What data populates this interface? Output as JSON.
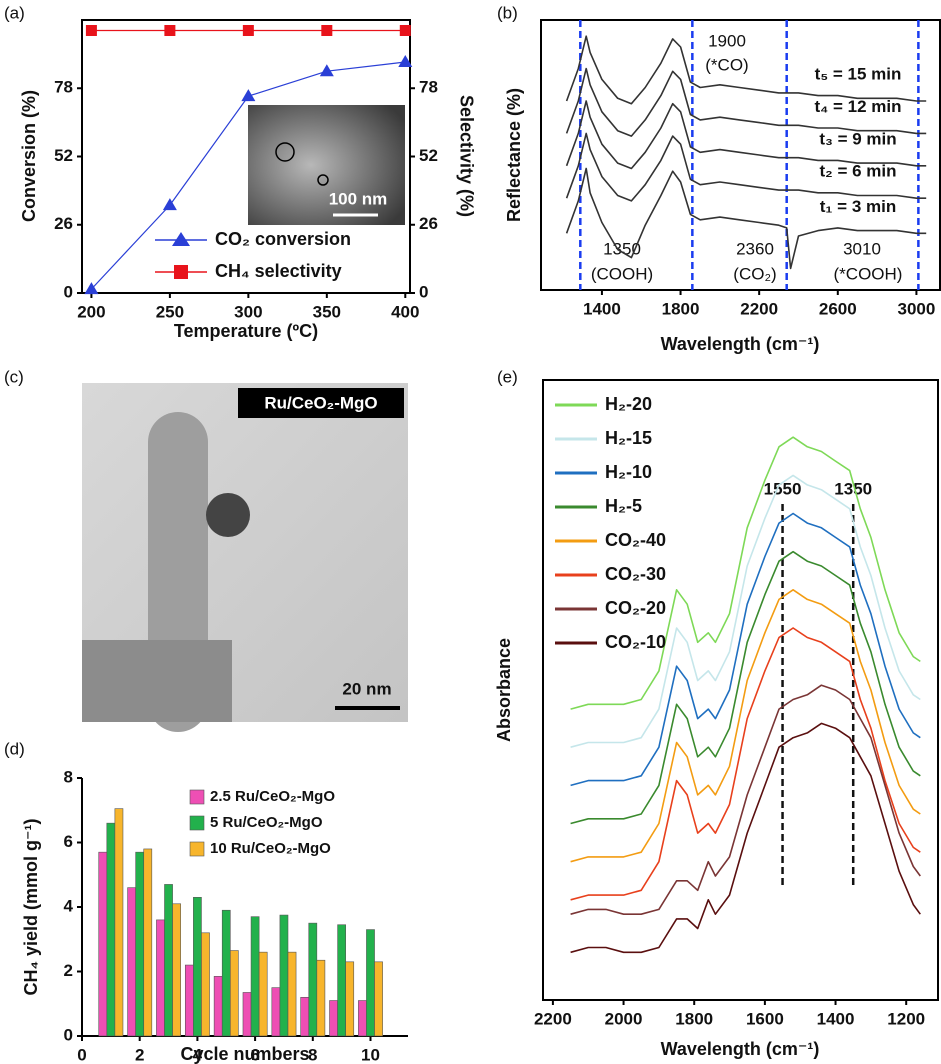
{
  "panel_labels": [
    "(a)",
    "(b)",
    "(c)",
    "(d)",
    "(e)"
  ],
  "images": [
    {
      "scale_bar": "100 nm"
    },
    {
      "label": "Ru/CeO₂-MgO",
      "scale_bar": "20 nm"
    }
  ],
  "chart_data": [
    {
      "type": "line",
      "x_label": "Temperature (ºC)",
      "y_label": "Conversion (%)",
      "y2_label": "Selectivity (%)",
      "x": [
        200,
        250,
        300,
        350,
        400
      ],
      "xlim": [
        194,
        403
      ],
      "xticks": [
        200,
        250,
        300,
        350,
        400
      ],
      "ylim": [
        0,
        104
      ],
      "yticks": [
        0,
        26,
        52,
        78
      ],
      "y2lim": [
        0,
        104
      ],
      "y2ticks": [
        0,
        26,
        52,
        78
      ],
      "grid": false,
      "series": [
        {
          "name": "CO₂ conversion",
          "color": "#2a3fd6",
          "marker": "triangle",
          "values": [
            1.5,
            33.5,
            75,
            84.5,
            88
          ]
        },
        {
          "name": "CH₄ selectivity",
          "color": "#e8131b",
          "marker": "square",
          "axis": "y2",
          "values": [
            100,
            100,
            100,
            100,
            100
          ]
        }
      ]
    },
    {
      "type": "line",
      "x_label": "Wavelength (cm⁻¹)",
      "y_label": "Reflectance (%)",
      "x": [
        1220,
        1280,
        1320,
        1340,
        1400,
        1480,
        1550,
        1620,
        1700,
        1760,
        1800,
        1850,
        1900,
        2000,
        2100,
        2200,
        2300,
        2340,
        2360,
        2400,
        2500,
        2600,
        2700,
        2800,
        2900,
        3000,
        3050
      ],
      "xlim": [
        1090,
        3120
      ],
      "xticks": [
        1400,
        1800,
        2200,
        2600,
        3000
      ],
      "ylim": [
        0,
        100
      ],
      "grid": false,
      "reference_lines": [
        1290,
        1860,
        2340,
        3010
      ],
      "reference_color": "#1a3cf0",
      "annotations": [
        "1900",
        "(*CO)",
        "1350",
        "(COOH)",
        "2360",
        "(CO₂)",
        "3010",
        "(*COOH)"
      ],
      "series": [
        {
          "name": "t₅ = 15 min",
          "color": "#333333",
          "values": [
            70,
            82,
            94,
            88,
            78,
            71,
            69,
            75,
            84,
            93,
            90,
            77,
            75,
            76,
            75,
            74,
            73,
            73,
            73,
            73,
            72,
            72,
            71,
            71,
            71,
            70,
            70
          ]
        },
        {
          "name": "t₄ = 12 min",
          "color": "#333333",
          "values": [
            58,
            70,
            82,
            76,
            66,
            59,
            57,
            63,
            72,
            81,
            78,
            65,
            63,
            64,
            63,
            62,
            61,
            61,
            61,
            61,
            60,
            60,
            59,
            59,
            59,
            58,
            58
          ]
        },
        {
          "name": "t₃ = 9 min",
          "color": "#333333",
          "values": [
            46,
            58,
            70,
            64,
            54,
            47,
            45,
            51,
            60,
            69,
            66,
            53,
            51,
            52,
            51,
            50,
            49,
            49,
            49,
            49,
            48,
            48,
            47,
            47,
            47,
            46,
            46
          ]
        },
        {
          "name": "t₂ = 6 min",
          "color": "#333333",
          "values": [
            34,
            46,
            58,
            52,
            42,
            35,
            33,
            39,
            48,
            57,
            54,
            41,
            39,
            40,
            39,
            38,
            37,
            37,
            37,
            37,
            36,
            36,
            35,
            35,
            35,
            34,
            34
          ]
        },
        {
          "name": "t₁ = 3 min",
          "color": "#333333",
          "values": [
            21,
            33,
            45,
            36,
            25,
            15,
            12,
            24,
            35,
            44,
            40,
            28,
            26,
            27,
            26,
            25,
            24,
            23,
            8,
            20,
            22,
            23,
            22,
            22,
            22,
            21,
            21
          ]
        }
      ]
    },
    {
      "type": "bar",
      "x_label": "Cycle numbers",
      "y_label": "CH₄ yield (mmol g⁻¹)",
      "x": [
        1,
        2,
        3,
        4,
        5,
        6,
        7,
        8,
        9,
        10
      ],
      "xlim": [
        0,
        11.3
      ],
      "xticks": [
        0,
        2,
        4,
        6,
        8,
        10
      ],
      "ylim": [
        0,
        8
      ],
      "yticks": [
        0,
        2,
        4,
        6,
        8
      ],
      "grid": false,
      "series": [
        {
          "name": "2.5 Ru/CeO₂-MgO",
          "color": "#ee4fb4",
          "values": [
            5.7,
            4.6,
            3.6,
            2.2,
            1.85,
            1.35,
            1.5,
            1.2,
            1.1,
            1.1
          ]
        },
        {
          "name": "5 Ru/CeO₂-MgO",
          "color": "#22b14c",
          "values": [
            6.6,
            5.7,
            4.7,
            4.3,
            3.9,
            3.7,
            3.75,
            3.5,
            3.45,
            3.3
          ]
        },
        {
          "name": "10 Ru/CeO₂-MgO",
          "color": "#f7b52c",
          "values": [
            7.05,
            5.8,
            4.1,
            3.2,
            2.65,
            2.6,
            2.6,
            2.35,
            2.3,
            2.3
          ]
        }
      ]
    },
    {
      "type": "line",
      "x_label": "Wavelength (cm⁻¹)",
      "y_label": "Absorbance",
      "x": [
        2150,
        2100,
        2050,
        2000,
        1950,
        1900,
        1850,
        1820,
        1790,
        1760,
        1740,
        1700,
        1650,
        1600,
        1560,
        1520,
        1480,
        1440,
        1400,
        1360,
        1330,
        1300,
        1260,
        1220,
        1180,
        1160
      ],
      "xlim": [
        2228,
        1110
      ],
      "xticks": [
        2200,
        2000,
        1800,
        1600,
        1400,
        1200
      ],
      "ylim": [
        -5,
        125
      ],
      "grid": false,
      "reference_lines": [
        1550,
        1350
      ],
      "reference_color": "#111111",
      "series": [
        {
          "name": "H₂-20",
          "color": "#7ed957",
          "values": [
            56,
            57,
            57,
            57,
            58,
            64,
            81,
            78,
            70,
            72,
            70,
            76,
            94,
            104,
            111,
            113,
            111,
            110,
            108,
            106,
            98,
            92,
            81,
            72,
            67,
            66
          ]
        },
        {
          "name": "H₂-15",
          "color": "#c5e6ea",
          "values": [
            48,
            49,
            49,
            49,
            50,
            56,
            73,
            70,
            62,
            64,
            62,
            68,
            86,
            96,
            103,
            105,
            103,
            102,
            100,
            98,
            90,
            84,
            73,
            64,
            59,
            58
          ]
        },
        {
          "name": "H₂-10",
          "color": "#1f6fc0",
          "values": [
            40,
            41,
            41,
            41,
            42,
            48,
            65,
            62,
            54,
            56,
            54,
            60,
            78,
            88,
            95,
            97,
            95,
            94,
            92,
            90,
            82,
            76,
            65,
            56,
            51,
            50
          ]
        },
        {
          "name": "H₂-5",
          "color": "#3a8a2e",
          "values": [
            32,
            33,
            33,
            33,
            34,
            40,
            57,
            54,
            46,
            48,
            46,
            52,
            70,
            80,
            87,
            89,
            87,
            86,
            84,
            82,
            74,
            68,
            57,
            48,
            43,
            42
          ]
        },
        {
          "name": "CO₂-40",
          "color": "#f39c12",
          "values": [
            24,
            25,
            25,
            25,
            26,
            32,
            49,
            46,
            38,
            40,
            38,
            44,
            62,
            72,
            79,
            81,
            79,
            78,
            76,
            74,
            66,
            60,
            49,
            40,
            35,
            34
          ]
        },
        {
          "name": "CO₂-30",
          "color": "#e8401c",
          "values": [
            16,
            17,
            17,
            17,
            18,
            24,
            41,
            38,
            30,
            32,
            30,
            36,
            54,
            64,
            71,
            73,
            71,
            70,
            68,
            66,
            58,
            52,
            41,
            32,
            27,
            26
          ]
        },
        {
          "name": "CO₂-20",
          "color": "#7a3535",
          "values": [
            13,
            14,
            14,
            13,
            13,
            14,
            20,
            20,
            18,
            24,
            21,
            25,
            38,
            48,
            56,
            58,
            59,
            61,
            60,
            58,
            54,
            50,
            40,
            30,
            23,
            21
          ]
        },
        {
          "name": "CO₂-10",
          "color": "#5a0f0f",
          "values": [
            5,
            6,
            6,
            5,
            5,
            6,
            12,
            12,
            10,
            16,
            13,
            17,
            30,
            40,
            48,
            50,
            51,
            53,
            52,
            50,
            46,
            42,
            32,
            22,
            15,
            13
          ]
        }
      ]
    }
  ]
}
